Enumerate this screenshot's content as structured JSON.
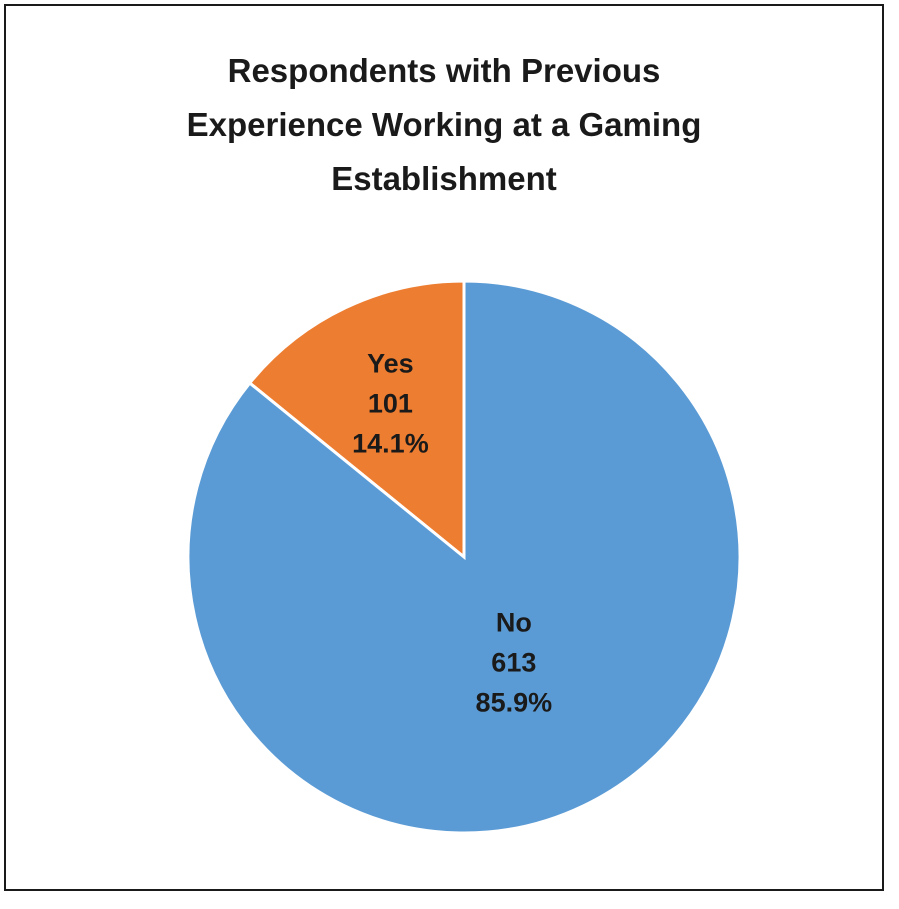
{
  "chart_data": {
    "type": "pie",
    "title_lines": [
      "Respondents with Previous",
      "Experience Working at a Gaming",
      "Establishment"
    ],
    "slices": [
      {
        "label": "Yes",
        "count": "101",
        "percent_label": "14.1%",
        "value": 101,
        "color": "#ED7D31"
      },
      {
        "label": "No",
        "count": "613",
        "percent_label": "85.9%",
        "value": 613,
        "color": "#5B9BD5"
      }
    ],
    "start": "top, clockwise from Yes ending at 12 o'clock",
    "legend": "none"
  }
}
